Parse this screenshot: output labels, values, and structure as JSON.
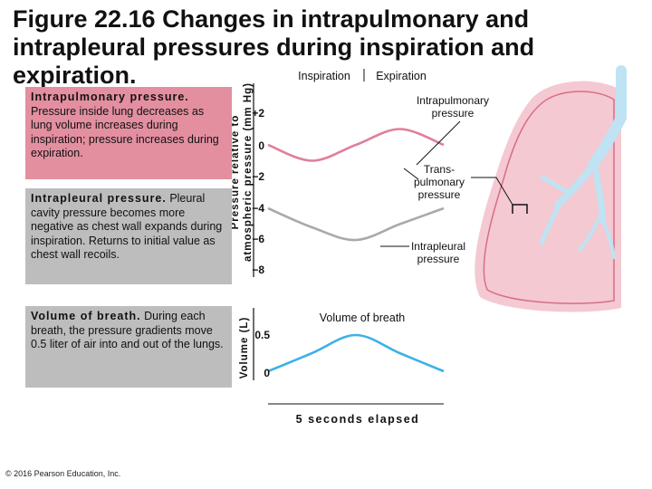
{
  "title": "Figure 22.16 Changes in intrapulmonary and intrapleural pressures during inspiration and expiration.",
  "boxes": {
    "intrapulmonary": {
      "heading": "Intrapulmonary pressure.",
      "text": "Pressure inside lung decreases as lung volume increases during inspiration; pressure increases during expiration."
    },
    "intrapleural": {
      "heading": "Intrapleural pressure.",
      "text": "Pleural cavity pressure becomes more negative as chest wall expands during inspiration. Returns to initial value as chest wall recoils."
    },
    "volume": {
      "heading": "Volume of breath.",
      "text": "During each breath, the pressure gradients move 0.5 liter of air into and out of the lungs."
    }
  },
  "pressure_chart": {
    "ylabel_line1": "Pressure relative to",
    "ylabel_line2": "atmospheric pressure (mm Hg)",
    "ticks": [
      "+2",
      "0",
      "−2",
      "−4",
      "−6",
      "−8"
    ],
    "phase_inspiration": "Inspiration",
    "phase_expiration": "Expiration",
    "label_intrapulmonary": "Intrapulmonary pressure",
    "label_transpulmonary": "Trans-pulmonary pressure",
    "label_intrapleural": "Intrapleural pressure"
  },
  "volume_chart": {
    "ylabel": "Volume (L)",
    "title": "Volume of breath",
    "ticks": [
      "0.5",
      "0"
    ]
  },
  "xlabel": "5 seconds elapsed",
  "copyright": "© 2016 Pearson Education, Inc.",
  "colors": {
    "pink_box": "#e38fa0",
    "grey_box": "#bdbdbd",
    "intrapulmonary_curve": "#e07f99",
    "intrapleural_curve": "#a9a9a9",
    "volume_curve": "#3eb1e6",
    "lung_fill": "#f4c9d2",
    "airway": "#bfe3f3"
  },
  "chart_data": [
    {
      "type": "line",
      "x": [
        0,
        1.25,
        2.5,
        3.75,
        5
      ],
      "series": [
        {
          "name": "Intrapulmonary pressure",
          "values": [
            0,
            -1,
            0,
            1,
            0
          ]
        },
        {
          "name": "Intrapleural pressure",
          "values": [
            -4,
            -5.2,
            -6,
            -5,
            -4
          ]
        }
      ],
      "ylabel": "Pressure relative to atmospheric pressure (mm Hg)",
      "ylim": [
        -8,
        2
      ],
      "grid": false
    },
    {
      "type": "line",
      "x": [
        0,
        1.25,
        2.5,
        3.75,
        5
      ],
      "series": [
        {
          "name": "Volume of breath",
          "values": [
            0,
            0.25,
            0.5,
            0.25,
            0
          ]
        }
      ],
      "ylabel": "Volume (L)",
      "xlabel": "5 seconds elapsed",
      "ylim": [
        0,
        0.5
      ],
      "grid": false
    }
  ]
}
